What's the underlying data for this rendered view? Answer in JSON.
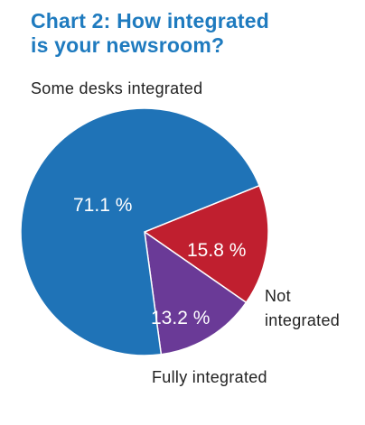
{
  "title_lines": [
    "Chart 2: How integrated",
    "is your newsroom?"
  ],
  "colors": {
    "title": "#1f7bbf",
    "some_desks": "#1f73b7",
    "not_integrated": "#c01f2f",
    "fully_integrated": "#6a3a97",
    "label_outside": "#222222",
    "label_inside": "#ffffff"
  },
  "chart_data": {
    "type": "pie",
    "title": "Chart 2: How integrated is your newsroom?",
    "slices": [
      {
        "label": "Some desks integrated",
        "value": 71.1,
        "value_label": "71.1 %",
        "color": "#1f73b7"
      },
      {
        "label": "Not integrated",
        "label_lines": [
          "Not",
          "integrated"
        ],
        "value": 15.8,
        "value_label": "15.8 %",
        "color": "#c01f2f"
      },
      {
        "label": "Fully integrated",
        "value": 13.2,
        "value_label": "13.2 %",
        "color": "#6a3a97"
      }
    ]
  }
}
